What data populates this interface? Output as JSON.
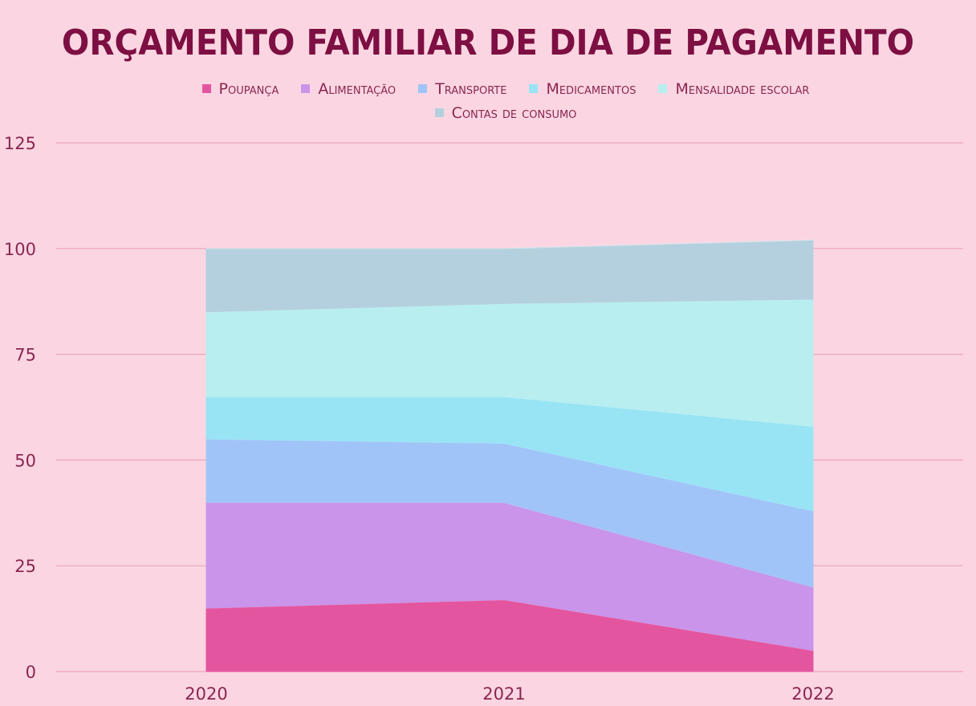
{
  "chart_data": {
    "type": "area",
    "stacked": true,
    "title": "ORÇAMENTO FAMILIAR DE DIA DE PAGAMENTO",
    "xlabel": "",
    "ylabel": "",
    "categories": [
      "2020",
      "2021",
      "2022"
    ],
    "ylim": [
      0,
      125
    ],
    "yticks": [
      "0",
      "25",
      "50",
      "75",
      "100",
      "125"
    ],
    "grid": true,
    "legend_position": "top",
    "series": [
      {
        "name": "Poupança",
        "values": [
          15,
          17,
          5
        ],
        "color": "#e4559f"
      },
      {
        "name": "Alimentação",
        "values": [
          25,
          23,
          15
        ],
        "color": "#c994ea"
      },
      {
        "name": "Transporte",
        "values": [
          15,
          14,
          18
        ],
        "color": "#a0c4f8"
      },
      {
        "name": "Medicamentos",
        "values": [
          10,
          11,
          20
        ],
        "color": "#98e4f5"
      },
      {
        "name": "Mensalidade escolar",
        "values": [
          20,
          22,
          30
        ],
        "color": "#b8eef0"
      },
      {
        "name": "Contas de consumo",
        "values": [
          15,
          13,
          14
        ],
        "color": "#b4d0de"
      }
    ]
  }
}
